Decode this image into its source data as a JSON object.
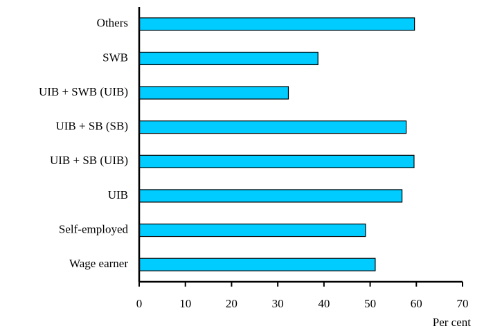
{
  "chart_data": {
    "type": "barh",
    "categories": [
      "Others",
      "SWB",
      "UIB + SWB (UIB)",
      "UIB + SB (SB)",
      "UIB + SB (UIB)",
      "UIB",
      "Self-employed",
      "Wage earner"
    ],
    "values": [
      59.6,
      38.7,
      32.3,
      57.8,
      59.5,
      56.9,
      49.0,
      51.1
    ],
    "color": "#00ccff",
    "xlabel": "Per cent",
    "xlim": [
      0,
      70
    ],
    "xticks": [
      0,
      10,
      20,
      30,
      40,
      50,
      60,
      70
    ]
  }
}
